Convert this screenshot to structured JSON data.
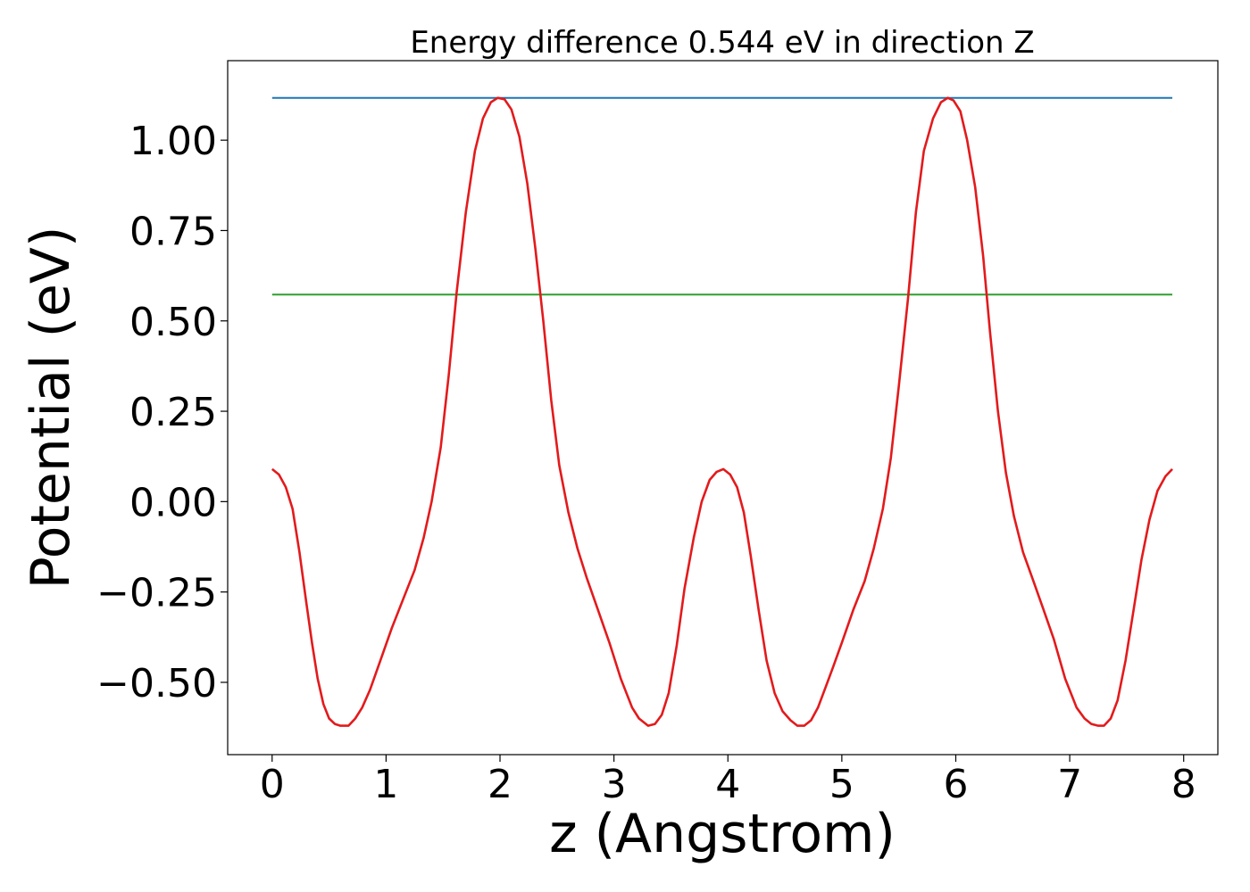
{
  "chart_data": {
    "type": "line",
    "title": "Energy difference 0.544 eV in direction Z",
    "xlabel": "z (Angstrom)",
    "ylabel": "Potential (eV)",
    "xlim": [
      -0.39,
      8.3
    ],
    "ylim": [
      -0.7,
      1.22
    ],
    "xticks": [
      0,
      1,
      2,
      3,
      4,
      5,
      6,
      7,
      8
    ],
    "xtick_labels": [
      "0",
      "1",
      "2",
      "3",
      "4",
      "5",
      "6",
      "7",
      "8"
    ],
    "yticks": [
      1.0,
      0.75,
      0.5,
      0.25,
      0.0,
      -0.25,
      -0.5
    ],
    "ytick_labels": [
      "1.00",
      "0.75",
      "0.50",
      "0.25",
      "0.00",
      "−0.25",
      "−0.50"
    ],
    "grid": false,
    "colors": {
      "potential": "#e31a1c",
      "max_line": "#1f77b4",
      "mid_line": "#2ca02c"
    },
    "series": [
      {
        "x": [
          0,
          0.06,
          0.12,
          0.18,
          0.24,
          0.3,
          0.35,
          0.4,
          0.45,
          0.5,
          0.55,
          0.6,
          0.67,
          0.73,
          0.79,
          0.86,
          0.95,
          1.05,
          1.15,
          1.25,
          1.33,
          1.4,
          1.48,
          1.55,
          1.62,
          1.7,
          1.78,
          1.85,
          1.92,
          1.98,
          2.04,
          2.1,
          2.17,
          2.24,
          2.31,
          2.38,
          2.45,
          2.52,
          2.6,
          2.68,
          2.76,
          2.86,
          2.96,
          3.06,
          3.16,
          3.22,
          3.3,
          3.36,
          3.42,
          3.48,
          3.55,
          3.62,
          3.7,
          3.77,
          3.84,
          3.9,
          3.96,
          4.02,
          4.08,
          4.14,
          4.2,
          4.27,
          4.34,
          4.41,
          4.48,
          4.55,
          4.61,
          4.67,
          4.73,
          4.79,
          4.85,
          4.92,
          5.0,
          5.1,
          5.2,
          5.28,
          5.36,
          5.43,
          5.5,
          5.58,
          5.65,
          5.72,
          5.8,
          5.87,
          5.93,
          5.98,
          6.04,
          6.1,
          6.17,
          6.24,
          6.3,
          6.37,
          6.44,
          6.51,
          6.59,
          6.67,
          6.76,
          6.86,
          6.96,
          7.06,
          7.13,
          7.19,
          7.25,
          7.3,
          7.36,
          7.42,
          7.49,
          7.56,
          7.63,
          7.7,
          7.77,
          7.84,
          7.9
        ],
        "y": [
          0.09,
          0.075,
          0.04,
          -0.02,
          -0.14,
          -0.28,
          -0.39,
          -0.49,
          -0.56,
          -0.6,
          -0.615,
          -0.62,
          -0.62,
          -0.6,
          -0.57,
          -0.52,
          -0.44,
          -0.35,
          -0.27,
          -0.19,
          -0.1,
          0.0,
          0.15,
          0.35,
          0.58,
          0.8,
          0.97,
          1.06,
          1.105,
          1.117,
          1.113,
          1.085,
          1.01,
          0.88,
          0.7,
          0.5,
          0.28,
          0.1,
          -0.03,
          -0.13,
          -0.21,
          -0.3,
          -0.39,
          -0.49,
          -0.57,
          -0.6,
          -0.62,
          -0.615,
          -0.59,
          -0.53,
          -0.4,
          -0.24,
          -0.1,
          0.0,
          0.06,
          0.082,
          0.09,
          0.075,
          0.04,
          -0.03,
          -0.15,
          -0.3,
          -0.44,
          -0.53,
          -0.58,
          -0.605,
          -0.62,
          -0.62,
          -0.605,
          -0.57,
          -0.52,
          -0.46,
          -0.39,
          -0.3,
          -0.22,
          -0.13,
          -0.02,
          0.12,
          0.32,
          0.56,
          0.8,
          0.97,
          1.06,
          1.105,
          1.117,
          1.11,
          1.08,
          1.0,
          0.87,
          0.68,
          0.47,
          0.25,
          0.08,
          -0.04,
          -0.14,
          -0.21,
          -0.29,
          -0.38,
          -0.49,
          -0.57,
          -0.6,
          -0.615,
          -0.62,
          -0.62,
          -0.6,
          -0.55,
          -0.44,
          -0.3,
          -0.16,
          -0.05,
          0.03,
          0.07,
          0.09
        ]
      },
      {
        "x": [
          0,
          7.9
        ],
        "y": [
          1.117,
          1.117
        ]
      },
      {
        "x": [
          0,
          7.9
        ],
        "y": [
          0.573,
          0.573
        ]
      }
    ]
  }
}
